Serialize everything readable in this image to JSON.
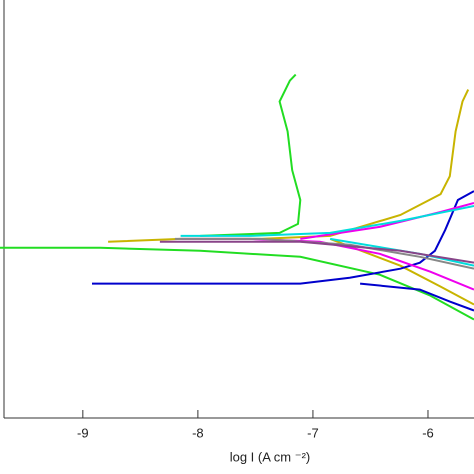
{
  "chart_data": {
    "type": "line",
    "xlabel": "log I (A cm ⁻²)",
    "xlim": [
      -9.72,
      -5.6
    ],
    "xticks": [
      -9,
      -8,
      -7,
      -6
    ],
    "ylim": [
      -1.6,
      -0.2
    ],
    "series": [
      {
        "color": "#22dd22",
        "x": [
          -9.72,
          -8.85,
          -7.98,
          -7.11,
          -6.42,
          -5.98,
          -5.6
        ],
        "values": [
          -1.03,
          -1.03,
          -1.04,
          -1.06,
          -1.12,
          -1.19,
          -1.27
        ]
      },
      {
        "color": "#22dd22",
        "x": [
          -7.98,
          -7.29,
          -7.13,
          -7.11,
          -7.18,
          -7.22,
          -7.29,
          -7.2,
          -7.15
        ],
        "values": [
          -0.99,
          -0.98,
          -0.95,
          -0.87,
          -0.77,
          -0.64,
          -0.54,
          -0.47,
          -0.45
        ]
      },
      {
        "color": "#c8b400",
        "x": [
          -8.78,
          -8.15,
          -7.46,
          -6.85,
          -6.24,
          -5.89,
          -5.81,
          -5.76,
          -5.7,
          -5.65
        ],
        "values": [
          -1.01,
          -1.0,
          -1.0,
          -0.99,
          -0.92,
          -0.85,
          -0.79,
          -0.64,
          -0.54,
          -0.5
        ]
      },
      {
        "color": "#c8b400",
        "x": [
          -6.85,
          -6.24,
          -5.89,
          -5.6
        ],
        "values": [
          -1.0,
          -1.09,
          -1.16,
          -1.22
        ]
      },
      {
        "color": "#0000cc",
        "x": [
          -8.92,
          -7.98,
          -7.11,
          -6.68,
          -6.24,
          -6.07,
          -5.94,
          -5.85,
          -5.74,
          -5.6
        ],
        "values": [
          -1.15,
          -1.15,
          -1.15,
          -1.13,
          -1.1,
          -1.08,
          -1.04,
          -0.97,
          -0.87,
          -0.84
        ]
      },
      {
        "color": "#0000cc",
        "x": [
          -6.59,
          -6.07,
          -5.81,
          -5.6
        ],
        "values": [
          -1.15,
          -1.17,
          -1.21,
          -1.24
        ]
      },
      {
        "color": "#ee00ee",
        "x": [
          -8.15,
          -7.55,
          -6.94,
          -6.42,
          -5.98,
          -5.6
        ],
        "values": [
          -1.0,
          -1.0,
          -1.01,
          -1.05,
          -1.11,
          -1.17
        ]
      },
      {
        "color": "#ee00ee",
        "x": [
          -7.11,
          -6.42,
          -5.89,
          -5.6
        ],
        "values": [
          -1.0,
          -0.96,
          -0.91,
          -0.88
        ]
      },
      {
        "color": "#00dddd",
        "x": [
          -8.15,
          -7.55,
          -6.85,
          -6.24,
          -5.6
        ],
        "values": [
          -0.99,
          -0.99,
          -0.98,
          -0.94,
          -0.89
        ]
      },
      {
        "color": "#00dddd",
        "x": [
          -6.85,
          -6.07,
          -5.6
        ],
        "values": [
          -1.0,
          -1.05,
          -1.09
        ]
      },
      {
        "color": "#888888",
        "x": [
          -8.2,
          -7.46,
          -6.68,
          -6.07,
          -5.6
        ],
        "values": [
          -1.0,
          -1.0,
          -1.02,
          -1.06,
          -1.1
        ]
      },
      {
        "color": "#884488",
        "x": [
          -8.33,
          -7.11,
          -6.24,
          -5.6
        ],
        "values": [
          -1.01,
          -1.01,
          -1.04,
          -1.08
        ]
      }
    ]
  }
}
